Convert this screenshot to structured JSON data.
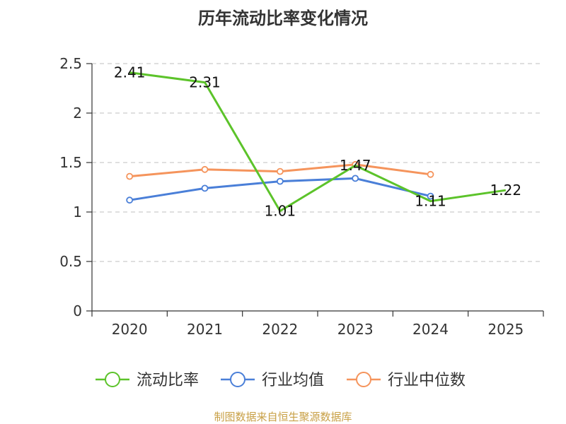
{
  "chart_data": {
    "type": "line",
    "title": "历年流动比率变化情况",
    "categories": [
      "2020",
      "2021",
      "2022",
      "2023",
      "2024",
      "2025"
    ],
    "ylim": [
      0,
      2.5
    ],
    "yticks": [
      "0",
      "0.5",
      "1",
      "1.5",
      "2",
      "2.5"
    ],
    "ytick_values": [
      0,
      0.5,
      1,
      1.5,
      2,
      2.5
    ],
    "grid": true,
    "legend_position": "bottom",
    "series": [
      {
        "name": "流动比率",
        "color": "#5cc32a",
        "values": [
          2.41,
          2.31,
          1.01,
          1.47,
          1.11,
          1.22
        ],
        "labels": [
          "2.41",
          "2.31",
          "1.01",
          "1.47",
          "1.11",
          "1.22"
        ],
        "show_points": false
      },
      {
        "name": "行业均值",
        "color": "#4a7fd8",
        "values": [
          1.12,
          1.24,
          1.31,
          1.34,
          1.16,
          null
        ],
        "show_points": true
      },
      {
        "name": "行业中位数",
        "color": "#f5945c",
        "values": [
          1.36,
          1.43,
          1.41,
          1.48,
          1.38,
          null
        ],
        "show_points": true
      }
    ]
  },
  "footer": {
    "text": "制图数据来自恒生聚源数据库",
    "color": "#c8a046"
  }
}
